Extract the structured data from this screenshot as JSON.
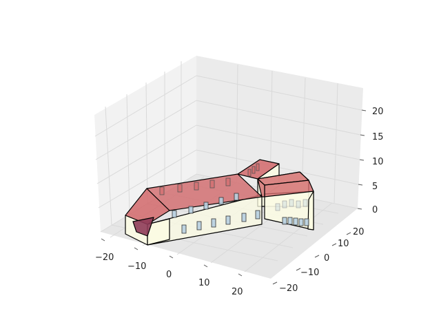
{
  "chart_data": {
    "type": "3d-mesh",
    "title": "",
    "xlabel": "",
    "ylabel": "",
    "zlabel": "",
    "grid": true,
    "xlim": [
      -22,
      25
    ],
    "ylim": [
      -25,
      25
    ],
    "zlim": [
      0,
      23
    ],
    "xticks": [
      -20,
      -10,
      0,
      10,
      20
    ],
    "yticks": [
      -20,
      -10,
      0,
      10,
      20
    ],
    "zticks": [
      0,
      5,
      10,
      15,
      20
    ],
    "xtick_labels": [
      "−20",
      "−10",
      "0",
      "10",
      "20"
    ],
    "ytick_labels": [
      "−20",
      "−10",
      "0",
      "10",
      "20"
    ],
    "ztick_labels": [
      "0",
      "5",
      "10",
      "15",
      "20"
    ],
    "colors": {
      "wall": "#fbfbe3",
      "roof": "#d2696b",
      "roof_dark": "#8e3b58",
      "window": "#b7cfe0",
      "edge": "#000000",
      "grid": "#d9d9d9",
      "pane": "#f2f2f2"
    }
  }
}
